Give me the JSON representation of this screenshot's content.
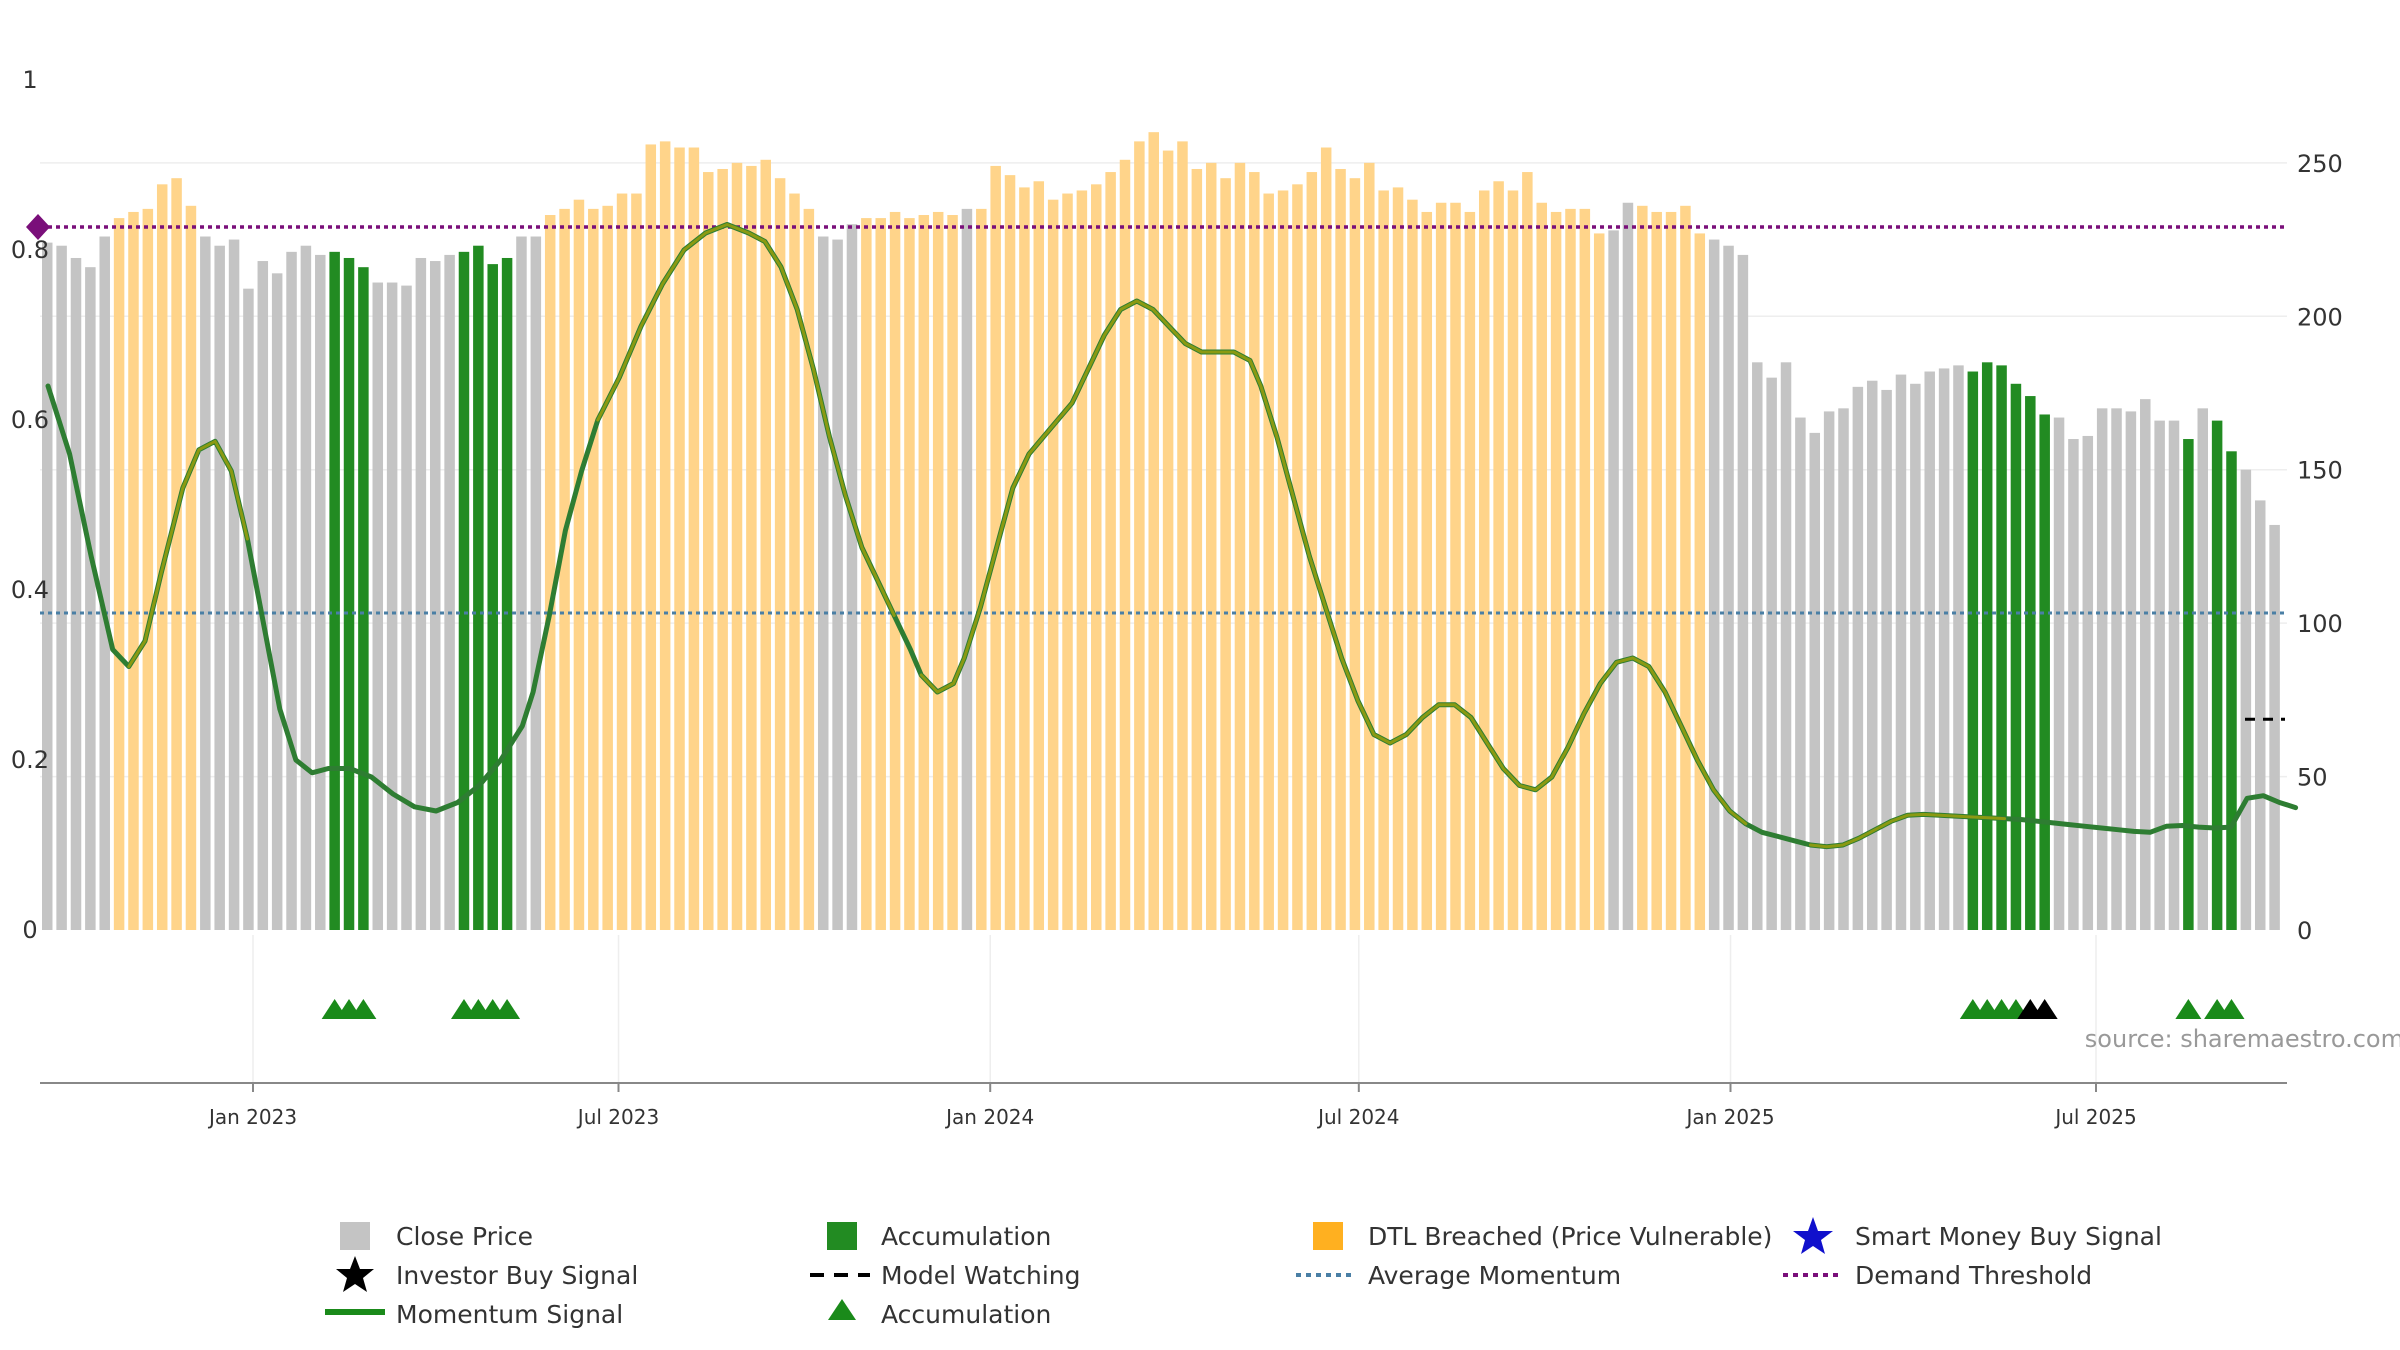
{
  "colors": {
    "close": "#c4c4c4",
    "accumulation": "#228b22",
    "dtl": "#ffd48a",
    "momentum": "#2e7d32",
    "momentum_dtl": "#8a9a12",
    "avg_momentum": "#4a7fa5",
    "demand": "#7a0f7a",
    "grid": "#eeeeee",
    "investor": "#000000",
    "smart_money": "#1010cc",
    "triangle": "#1a8a1a"
  },
  "chart_data": {
    "type": "bar",
    "title": "",
    "xlabel": "",
    "ylabel": "",
    "left_axis": {
      "range": [
        0,
        1
      ],
      "ticks": [
        "0",
        "0.2",
        "0.4",
        "0.6",
        "0.8",
        "1"
      ]
    },
    "right_axis": {
      "range": [
        0,
        277
      ],
      "ticks": [
        "0",
        "50",
        "100",
        "150",
        "200",
        "250"
      ]
    },
    "x_axis": {
      "range_months": [
        0,
        35.9
      ],
      "ticks": [
        {
          "label": "Jan 2023",
          "month": 3.4
        },
        {
          "label": "Jul 2023",
          "month": 9.3
        },
        {
          "label": "Jan 2024",
          "month": 15.3
        },
        {
          "label": "Jul 2024",
          "month": 21.25
        },
        {
          "label": "Jan 2025",
          "month": 27.25
        },
        {
          "label": "Jul 2025",
          "month": 33.15
        }
      ]
    },
    "close_prices": [
      224,
      223,
      219,
      216,
      226,
      232,
      234,
      235,
      243,
      245,
      236,
      226,
      223,
      225,
      209,
      218,
      214,
      221,
      223,
      220,
      221,
      219,
      216,
      211,
      211,
      210,
      219,
      218,
      220,
      221,
      223,
      217,
      219,
      226,
      226,
      233,
      235,
      238,
      235,
      236,
      240,
      240,
      256,
      257,
      255,
      255,
      247,
      248,
      250,
      249,
      251,
      245,
      240,
      235,
      226,
      225,
      230,
      232,
      232,
      234,
      232,
      233,
      234,
      233,
      235,
      235,
      249,
      246,
      242,
      244,
      238,
      240,
      241,
      243,
      247,
      251,
      257,
      260,
      254,
      257,
      248,
      250,
      245,
      250,
      247,
      240,
      241,
      243,
      247,
      255,
      248,
      245,
      250,
      241,
      242,
      238,
      234,
      237,
      237,
      234,
      241,
      244,
      241,
      247,
      237,
      234,
      235,
      235,
      227,
      228,
      237,
      236,
      234,
      234,
      236,
      227,
      225,
      223,
      220,
      185,
      180,
      185,
      167,
      162,
      169,
      170,
      177,
      179,
      176,
      181,
      178,
      182,
      183,
      184,
      182,
      185,
      184,
      178,
      174,
      168,
      167,
      160,
      161,
      170,
      170,
      169,
      173,
      166,
      166,
      160,
      170,
      166,
      156,
      150,
      140,
      132
    ],
    "close_segments": [
      {
        "from": 0,
        "to": 4,
        "type": "close"
      },
      {
        "from": 5,
        "to": 10,
        "type": "dtl"
      },
      {
        "from": 11,
        "to": 19,
        "type": "close"
      },
      {
        "from": 20,
        "to": 22,
        "type": "accumulation"
      },
      {
        "from": 23,
        "to": 28,
        "type": "close"
      },
      {
        "from": 29,
        "to": 32,
        "type": "accumulation"
      },
      {
        "from": 33,
        "to": 34,
        "type": "close"
      },
      {
        "from": 35,
        "to": 53,
        "type": "dtl"
      },
      {
        "from": 54,
        "to": 56,
        "type": "close"
      },
      {
        "from": 57,
        "to": 63,
        "type": "dtl"
      },
      {
        "from": 64,
        "to": 64,
        "type": "close"
      },
      {
        "from": 65,
        "to": 108,
        "type": "dtl"
      },
      {
        "from": 109,
        "to": 110,
        "type": "close"
      },
      {
        "from": 111,
        "to": 115,
        "type": "dtl"
      },
      {
        "from": 116,
        "to": 133,
        "type": "close"
      },
      {
        "from": 134,
        "to": 139,
        "type": "accumulation"
      },
      {
        "from": 140,
        "to": 148,
        "type": "close"
      },
      {
        "from": 149,
        "to": 149,
        "type": "accumulation"
      },
      {
        "from": 150,
        "to": 150,
        "type": "close"
      },
      {
        "from": 151,
        "to": 152,
        "type": "accumulation"
      },
      {
        "from": 153,
        "to": 155,
        "type": "close"
      }
    ],
    "momentum_signal": [
      [
        0.0,
        0.64
      ],
      [
        0.4,
        0.56
      ],
      [
        0.8,
        0.44
      ],
      [
        1.2,
        0.33
      ],
      [
        1.5,
        0.31
      ],
      [
        1.8,
        0.34
      ],
      [
        2.1,
        0.42
      ],
      [
        2.5,
        0.52
      ],
      [
        2.8,
        0.565
      ],
      [
        3.1,
        0.575
      ],
      [
        3.4,
        0.54
      ],
      [
        3.7,
        0.46
      ],
      [
        4.0,
        0.36
      ],
      [
        4.3,
        0.26
      ],
      [
        4.6,
        0.2
      ],
      [
        4.9,
        0.185
      ],
      [
        5.2,
        0.19
      ],
      [
        5.6,
        0.19
      ],
      [
        6.0,
        0.18
      ],
      [
        6.4,
        0.16
      ],
      [
        6.8,
        0.145
      ],
      [
        7.2,
        0.14
      ],
      [
        7.6,
        0.15
      ],
      [
        8.0,
        0.17
      ],
      [
        8.4,
        0.2
      ],
      [
        8.8,
        0.24
      ],
      [
        9.0,
        0.28
      ],
      [
        9.3,
        0.37
      ],
      [
        9.6,
        0.47
      ],
      [
        9.9,
        0.54
      ],
      [
        10.2,
        0.6
      ],
      [
        10.6,
        0.65
      ],
      [
        11.0,
        0.71
      ],
      [
        11.4,
        0.76
      ],
      [
        11.8,
        0.8
      ],
      [
        12.2,
        0.82
      ],
      [
        12.6,
        0.83
      ],
      [
        13.0,
        0.82
      ],
      [
        13.3,
        0.81
      ],
      [
        13.6,
        0.78
      ],
      [
        13.9,
        0.73
      ],
      [
        14.2,
        0.66
      ],
      [
        14.5,
        0.58
      ],
      [
        14.8,
        0.51
      ],
      [
        15.1,
        0.45
      ],
      [
        15.4,
        0.41
      ],
      [
        15.7,
        0.37
      ],
      [
        16.0,
        0.33
      ],
      [
        16.2,
        0.3
      ],
      [
        16.5,
        0.28
      ],
      [
        16.8,
        0.29
      ],
      [
        17.0,
        0.32
      ],
      [
        17.3,
        0.38
      ],
      [
        17.6,
        0.45
      ],
      [
        17.9,
        0.52
      ],
      [
        18.2,
        0.56
      ],
      [
        18.6,
        0.59
      ],
      [
        19.0,
        0.62
      ],
      [
        19.3,
        0.66
      ],
      [
        19.6,
        0.7
      ],
      [
        19.9,
        0.73
      ],
      [
        20.2,
        0.74
      ],
      [
        20.5,
        0.73
      ],
      [
        20.8,
        0.71
      ],
      [
        21.1,
        0.69
      ],
      [
        21.4,
        0.68
      ],
      [
        21.7,
        0.68
      ],
      [
        22.0,
        0.68
      ],
      [
        22.3,
        0.67
      ],
      [
        22.5,
        0.64
      ],
      [
        22.8,
        0.58
      ],
      [
        23.1,
        0.51
      ],
      [
        23.4,
        0.44
      ],
      [
        23.7,
        0.38
      ],
      [
        24.0,
        0.32
      ],
      [
        24.3,
        0.27
      ],
      [
        24.6,
        0.23
      ],
      [
        24.9,
        0.22
      ],
      [
        25.2,
        0.23
      ],
      [
        25.5,
        0.25
      ],
      [
        25.8,
        0.265
      ],
      [
        26.1,
        0.265
      ],
      [
        26.4,
        0.25
      ],
      [
        26.7,
        0.22
      ],
      [
        27.0,
        0.19
      ],
      [
        27.3,
        0.17
      ],
      [
        27.6,
        0.165
      ],
      [
        27.9,
        0.18
      ],
      [
        28.2,
        0.215
      ],
      [
        28.5,
        0.255
      ],
      [
        28.8,
        0.29
      ],
      [
        29.1,
        0.315
      ],
      [
        29.4,
        0.32
      ],
      [
        29.7,
        0.31
      ],
      [
        30.0,
        0.28
      ],
      [
        30.3,
        0.24
      ],
      [
        30.6,
        0.2
      ],
      [
        30.9,
        0.165
      ],
      [
        31.2,
        0.14
      ],
      [
        31.5,
        0.125
      ],
      [
        31.8,
        0.115
      ],
      [
        32.1,
        0.11
      ],
      [
        32.4,
        0.105
      ],
      [
        32.7,
        0.1
      ],
      [
        33.0,
        0.098
      ],
      [
        33.3,
        0.1
      ],
      [
        33.6,
        0.108
      ],
      [
        33.9,
        0.118
      ],
      [
        34.2,
        0.128
      ],
      [
        34.5,
        0.135
      ],
      [
        34.8,
        0.136
      ],
      [
        35.1,
        0.135
      ],
      [
        35.4,
        0.134
      ],
      [
        35.7,
        0.133
      ],
      [
        36.0,
        0.132
      ],
      [
        36.3,
        0.131
      ],
      [
        36.6,
        0.13
      ],
      [
        36.9,
        0.128
      ],
      [
        37.2,
        0.126
      ],
      [
        37.5,
        0.124
      ],
      [
        37.8,
        0.122
      ],
      [
        38.1,
        0.12
      ],
      [
        38.4,
        0.118
      ],
      [
        38.7,
        0.116
      ],
      [
        39.0,
        0.115
      ],
      [
        39.3,
        0.122
      ],
      [
        39.6,
        0.123
      ],
      [
        39.9,
        0.121
      ],
      [
        40.2,
        0.12
      ],
      [
        40.5,
        0.121
      ],
      [
        40.8,
        0.155
      ],
      [
        41.1,
        0.158
      ],
      [
        41.4,
        0.15
      ],
      [
        41.7,
        0.144
      ]
    ],
    "momentum_dtl_ranges": [
      [
        1.35,
        3.8
      ],
      [
        10.0,
        15.7
      ],
      [
        16.1,
        31.6
      ],
      [
        32.5,
        36.3
      ]
    ],
    "average_momentum": 0.373,
    "demand_threshold": 0.827,
    "model_watching": 0.248,
    "accumulation_triangles": [
      20,
      21,
      22,
      29,
      30,
      31,
      32,
      134,
      135,
      136,
      137,
      149,
      151,
      152
    ],
    "investor_buy_signals": [
      138,
      139
    ],
    "legend": {
      "close_price": "Close Price",
      "accumulation": "Accumulation",
      "dtl_breached": "DTL Breached (Price Vulnerable)",
      "smart_money": "Smart Money Buy Signal",
      "investor_buy": "Investor Buy Signal",
      "model_watching": "Model Watching",
      "average_momentum": "Average Momentum",
      "demand_threshold": "Demand Threshold",
      "momentum_signal": "Momentum Signal",
      "accumulation_triangle": "Accumulation"
    }
  },
  "source": "source: sharemaestro.com"
}
